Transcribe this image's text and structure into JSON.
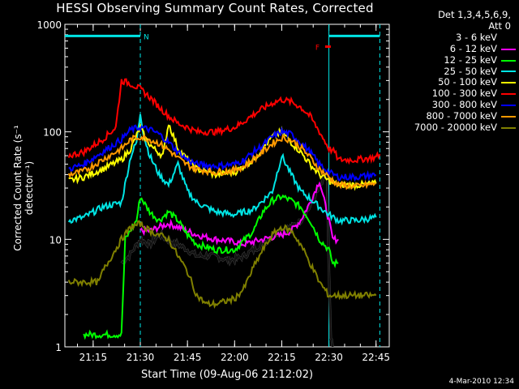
{
  "chart_data": {
    "type": "line",
    "title": "HESSI Observing Summary Count Rates, Corrected",
    "xlabel": "Start Time (09-Aug-06 21:12:02)",
    "ylabel": "Corrected Count Rate (s⁻¹ detector⁻¹)",
    "yscale": "log",
    "ylim": [
      1,
      1000
    ],
    "xlim_minutes": [
      21.1,
      22.82
    ],
    "y_tick_labels": [
      "1",
      "10",
      "100",
      "1000"
    ],
    "y_ticks": [
      1,
      10,
      100,
      1000
    ],
    "x_tick_labels": [
      "21:15",
      "21:30",
      "21:45",
      "22:00",
      "22:15",
      "22:30",
      "22:45"
    ],
    "x_ticks": [
      21.25,
      21.5,
      21.75,
      22.0,
      22.25,
      22.5,
      22.75
    ],
    "legend_header": [
      "Det 1,3,4,5,6,9,",
      "Att 0"
    ],
    "legend_placement": "right",
    "bars": [
      {
        "label": "N",
        "segments": [
          [
            21.1,
            21.5
          ],
          [
            22.5,
            22.77
          ]
        ],
        "y": 780,
        "color": "#00e5e5"
      },
      {
        "label": "F",
        "segments": [
          [
            22.48,
            22.51
          ]
        ],
        "y": 620,
        "color": "#ff0000"
      }
    ],
    "vlines": [
      {
        "x": 21.5,
        "style": "dashed",
        "color": "#00e5e5"
      },
      {
        "x": 22.5,
        "style": "solid",
        "color": "#00e5e5"
      },
      {
        "x": 22.77,
        "style": "dashed",
        "color": "#00e5e5"
      }
    ],
    "series": [
      {
        "name": "3 - 6 keV",
        "color": "#000000",
        "x": [
          21.4,
          21.44,
          21.5,
          21.55,
          21.6,
          21.64,
          21.7,
          21.75,
          21.8,
          21.85,
          21.9,
          21.95,
          22.0,
          22.05,
          22.1,
          22.15,
          22.2,
          22.25,
          22.3,
          22.35,
          22.4,
          22.45,
          22.49,
          22.5,
          22.51,
          22.52
        ],
        "y": [
          6,
          7,
          10,
          9,
          11,
          10,
          9,
          8,
          7,
          7,
          7,
          6.5,
          6.5,
          7,
          8,
          9,
          11,
          12,
          13,
          15,
          20,
          30,
          40,
          5,
          1.2,
          1
        ]
      },
      {
        "name": "6 - 12 keV",
        "color": "#ff00ff",
        "x": [
          21.5,
          21.55,
          21.6,
          21.65,
          21.7,
          21.8,
          21.9,
          22.0,
          22.05,
          22.1,
          22.15,
          22.2,
          22.25,
          22.3,
          22.35,
          22.4,
          22.45,
          22.5,
          22.52,
          22.55
        ],
        "y": [
          12,
          12,
          13,
          14,
          13,
          11,
          10,
          9.5,
          9,
          9.5,
          10,
          10.5,
          11,
          12,
          15,
          22,
          35,
          15,
          10,
          10
        ]
      },
      {
        "name": "12 - 25 keV",
        "color": "#00ff00",
        "x": [
          21.2,
          21.4,
          21.42,
          21.48,
          21.5,
          21.55,
          21.6,
          21.65,
          21.7,
          21.75,
          21.8,
          21.9,
          22.0,
          22.1,
          22.15,
          22.2,
          22.25,
          22.3,
          22.35,
          22.4,
          22.45,
          22.5,
          22.52,
          22.55
        ],
        "y": [
          1.3,
          1.3,
          10,
          15,
          25,
          18,
          15,
          18,
          15,
          11,
          9,
          8,
          8,
          12,
          18,
          23,
          25,
          23,
          20,
          15,
          10,
          8,
          6,
          6
        ]
      },
      {
        "name": "25 - 50 keV",
        "color": "#00e5e5",
        "x": [
          21.12,
          21.2,
          21.3,
          21.4,
          21.45,
          21.48,
          21.5,
          21.52,
          21.55,
          21.6,
          21.65,
          21.7,
          21.75,
          21.8,
          21.9,
          22.0,
          22.1,
          22.15,
          22.2,
          22.25,
          22.3,
          22.35,
          22.4,
          22.45,
          22.5,
          22.55,
          22.65,
          22.75
        ],
        "y": [
          15,
          16,
          20,
          22,
          60,
          80,
          150,
          90,
          60,
          40,
          32,
          50,
          28,
          22,
          18,
          17,
          19,
          23,
          28,
          60,
          40,
          28,
          24,
          20,
          17,
          15,
          15,
          16
        ]
      },
      {
        "name": "50 - 100 keV",
        "color": "#ffff00",
        "x": [
          21.12,
          21.2,
          21.3,
          21.4,
          21.45,
          21.5,
          21.53,
          21.57,
          21.62,
          21.65,
          21.7,
          21.75,
          21.8,
          21.9,
          22.0,
          22.1,
          22.15,
          22.2,
          22.25,
          22.3,
          22.35,
          22.4,
          22.45,
          22.5,
          22.55,
          22.65,
          22.75
        ],
        "y": [
          35,
          38,
          45,
          55,
          70,
          110,
          85,
          70,
          60,
          120,
          70,
          55,
          45,
          40,
          42,
          55,
          70,
          90,
          100,
          80,
          65,
          50,
          40,
          35,
          32,
          32,
          33
        ]
      },
      {
        "name": "100 - 300 keV",
        "color": "#ff0000",
        "x": [
          21.12,
          21.2,
          21.3,
          21.37,
          21.4,
          21.45,
          21.5,
          21.55,
          21.6,
          21.65,
          21.7,
          21.75,
          21.8,
          21.9,
          22.0,
          22.05,
          22.1,
          22.15,
          22.2,
          22.25,
          22.3,
          22.35,
          22.4,
          22.45,
          22.5,
          22.53,
          22.55,
          22.65,
          22.75,
          22.77
        ],
        "y": [
          60,
          65,
          85,
          110,
          300,
          280,
          250,
          210,
          170,
          140,
          120,
          110,
          100,
          100,
          110,
          125,
          145,
          165,
          185,
          200,
          190,
          170,
          140,
          100,
          70,
          65,
          55,
          55,
          58,
          62
        ]
      },
      {
        "name": "300 - 800 keV",
        "color": "#0000ff",
        "x": [
          21.12,
          21.2,
          21.3,
          21.4,
          21.45,
          21.5,
          21.55,
          21.6,
          21.65,
          21.7,
          21.75,
          21.8,
          21.9,
          22.0,
          22.05,
          22.1,
          22.15,
          22.2,
          22.25,
          22.3,
          22.35,
          22.4,
          22.45,
          22.5,
          22.55,
          22.65,
          22.75
        ],
        "y": [
          45,
          50,
          65,
          85,
          105,
          110,
          105,
          95,
          80,
          65,
          55,
          50,
          48,
          50,
          55,
          65,
          75,
          90,
          100,
          95,
          80,
          65,
          50,
          42,
          38,
          38,
          40
        ]
      },
      {
        "name": "800 - 7000 keV",
        "color": "#ff9900",
        "x": [
          21.12,
          21.2,
          21.3,
          21.4,
          21.45,
          21.5,
          21.55,
          21.6,
          21.65,
          21.7,
          21.75,
          21.8,
          21.9,
          22.0,
          22.05,
          22.1,
          22.15,
          22.2,
          22.25,
          22.3,
          22.35,
          22.4,
          22.45,
          22.5,
          22.55,
          22.65,
          22.75
        ],
        "y": [
          40,
          43,
          55,
          70,
          85,
          90,
          85,
          78,
          68,
          57,
          49,
          45,
          42,
          44,
          48,
          56,
          65,
          78,
          88,
          84,
          72,
          58,
          45,
          38,
          32,
          31,
          33
        ]
      },
      {
        "name": "7000 - 20000 keV",
        "color": "#808000",
        "x": [
          21.12,
          21.28,
          21.3,
          21.4,
          21.45,
          21.5,
          21.55,
          21.6,
          21.65,
          21.7,
          21.75,
          21.8,
          21.85,
          21.9,
          22.0,
          22.05,
          22.1,
          22.15,
          22.2,
          22.25,
          22.3,
          22.35,
          22.4,
          22.45,
          22.5,
          22.55,
          22.65,
          22.75
        ],
        "y": [
          4,
          4,
          5,
          10,
          13,
          14,
          12,
          11,
          10,
          7,
          5,
          3,
          2.5,
          2.5,
          2.8,
          3.5,
          5.5,
          8,
          11,
          13,
          12,
          9,
          6,
          4,
          3,
          3,
          3,
          3
        ]
      }
    ]
  },
  "stamp": "4-Mar-2010 12:34"
}
